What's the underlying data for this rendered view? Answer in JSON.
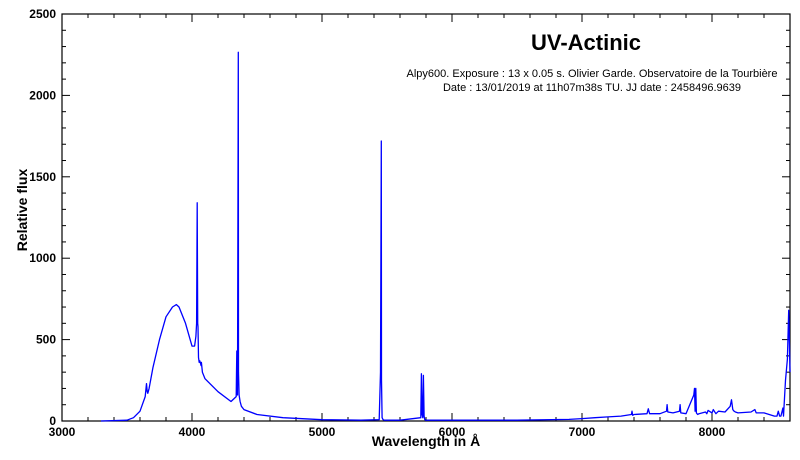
{
  "chart_data": {
    "type": "line",
    "title": "UV-Actinic",
    "annotations": [
      "Alpy600. Exposure : 13 x 0.05 s. Olivier Garde. Observatoire de la Tourbière",
      "Date : 13/01/2019 at 11h07m38s TU. JJ date : 2458496.9639"
    ],
    "xlabel": "Wavelength in Å",
    "ylabel": "Relative flux",
    "xlim": [
      3000,
      8600
    ],
    "ylim": [
      0,
      2500
    ],
    "xticks": [
      3000,
      4000,
      5000,
      6000,
      7000,
      8000
    ],
    "yticks": [
      0,
      500,
      1000,
      1500,
      2000,
      2500
    ],
    "grid": false,
    "series": [
      {
        "color": "#0000ff",
        "x": [
          3300,
          3500,
          3550,
          3600,
          3640,
          3650,
          3655,
          3660,
          3670,
          3700,
          3750,
          3800,
          3850,
          3880,
          3900,
          3950,
          4000,
          4020,
          4030,
          4035,
          4040,
          4044,
          4046,
          4050,
          4055,
          4060,
          4070,
          4072,
          4080,
          4100,
          4200,
          4300,
          4340,
          4345,
          4350,
          4356,
          4358,
          4362,
          4370,
          4380,
          4400,
          4500,
          4700,
          5000,
          5300,
          5440,
          5450,
          5456,
          5458,
          5462,
          5470,
          5480,
          5600,
          5760,
          5765,
          5770,
          5775,
          5780,
          5785,
          5790,
          5795,
          5800,
          5820,
          6000,
          6500,
          6900,
          7000,
          7100,
          7200,
          7300,
          7380,
          7385,
          7390,
          7400,
          7500,
          7510,
          7520,
          7600,
          7650,
          7655,
          7660,
          7700,
          7750,
          7755,
          7760,
          7800,
          7860,
          7865,
          7870,
          7875,
          7880,
          7885,
          7890,
          7900,
          7950,
          7960,
          7970,
          8000,
          8010,
          8030,
          8050,
          8100,
          8140,
          8150,
          8160,
          8170,
          8180,
          8200,
          8300,
          8330,
          8340,
          8400,
          8480,
          8500,
          8510,
          8520,
          8530,
          8545,
          8550,
          8565,
          8580,
          8590,
          8600
        ],
        "y": [
          0,
          5,
          20,
          60,
          150,
          230,
          180,
          170,
          200,
          330,
          500,
          640,
          700,
          715,
          700,
          600,
          460,
          460,
          520,
          600,
          1340,
          600,
          580,
          390,
          360,
          370,
          340,
          360,
          300,
          260,
          180,
          120,
          150,
          430,
          160,
          2265,
          300,
          160,
          120,
          90,
          70,
          40,
          20,
          8,
          5,
          8,
          300,
          1720,
          250,
          20,
          8,
          5,
          5,
          20,
          290,
          40,
          20,
          280,
          30,
          10,
          5,
          5,
          5,
          5,
          5,
          10,
          15,
          20,
          25,
          30,
          40,
          60,
          35,
          40,
          45,
          75,
          45,
          45,
          60,
          100,
          55,
          50,
          60,
          100,
          50,
          45,
          160,
          200,
          60,
          200,
          50,
          45,
          40,
          45,
          55,
          45,
          65,
          50,
          70,
          45,
          60,
          55,
          90,
          130,
          70,
          60,
          55,
          50,
          55,
          70,
          50,
          50,
          30,
          30,
          60,
          30,
          30,
          80,
          30,
          250,
          380,
          680,
          300
        ]
      }
    ]
  }
}
